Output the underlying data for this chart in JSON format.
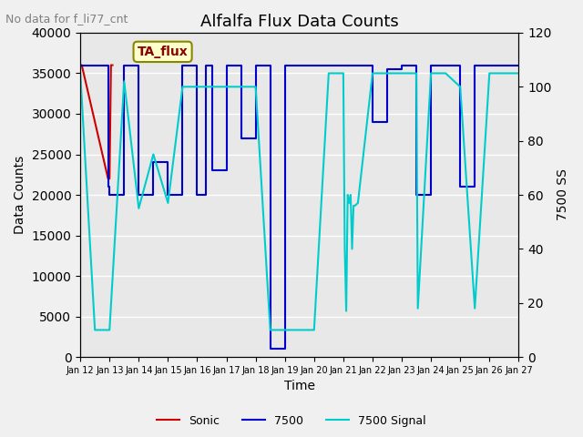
{
  "title": "Alfalfa Flux Data Counts",
  "subtitle": "No data for f_li77_cnt",
  "xlabel": "Time",
  "ylabel_left": "Data Counts",
  "ylabel_right": "7500 SS",
  "legend_box_label": "TA_flux",
  "ylim_left": [
    0,
    40000
  ],
  "ylim_right": [
    0,
    120
  ],
  "background_color": "#e8e8e8",
  "sonic_color": "#cc0000",
  "ls7500_color": "#0000cc",
  "signal_color": "#00cccc",
  "sonic_data": {
    "x": [
      12.0,
      12.05,
      12.95,
      13.0,
      13.05,
      13.1
    ],
    "y": [
      36000,
      36000,
      22000,
      22000,
      36000,
      36000
    ]
  },
  "ls7500_data": {
    "x": [
      12.0,
      12.02,
      12.02,
      12.95,
      12.95,
      13.0,
      13.0,
      13.5,
      13.5,
      14.0,
      14.0,
      14.5,
      14.5,
      15.0,
      15.0,
      15.5,
      15.5,
      16.0,
      16.0,
      16.3,
      16.3,
      16.5,
      16.5,
      17.0,
      17.0,
      17.5,
      17.5,
      18.0,
      18.0,
      18.5,
      18.5,
      19.0,
      19.0,
      19.5,
      19.5,
      20.0,
      20.0,
      20.5,
      20.5,
      21.0,
      21.0,
      21.5,
      21.5,
      22.0,
      22.0,
      22.5,
      22.5,
      23.0,
      23.0,
      23.5,
      23.5,
      24.0,
      24.0,
      24.5,
      24.5,
      25.0,
      25.0,
      25.5,
      25.5,
      26.0,
      26.0,
      26.5,
      26.5,
      27.0
    ],
    "y": [
      36000,
      36000,
      36000,
      36000,
      21000,
      21000,
      20000,
      20000,
      36000,
      36000,
      20000,
      20000,
      24000,
      24000,
      20000,
      20000,
      36000,
      36000,
      20000,
      20000,
      36000,
      36000,
      23000,
      23000,
      36000,
      36000,
      27000,
      27000,
      36000,
      36000,
      1000,
      1000,
      36000,
      36000,
      36000,
      36000,
      36000,
      36000,
      36000,
      36000,
      36000,
      36000,
      36000,
      36000,
      29000,
      29000,
      35500,
      35500,
      36000,
      36000,
      20000,
      20000,
      36000,
      36000,
      36000,
      36000,
      21000,
      21000,
      36000,
      36000,
      36000,
      36000,
      36000,
      36000
    ]
  },
  "signal_data": {
    "x": [
      12.0,
      12.5,
      13.0,
      13.5,
      14.0,
      14.5,
      15.0,
      15.5,
      16.0,
      16.5,
      17.0,
      17.5,
      18.0,
      18.5,
      19.0,
      19.5,
      20.0,
      20.5,
      21.0,
      21.05,
      21.1,
      21.15,
      21.2,
      21.25,
      21.3,
      21.35,
      21.4,
      21.5,
      22.0,
      22.5,
      23.0,
      23.5,
      23.55,
      24.0,
      24.5,
      25.0,
      25.5,
      26.0,
      26.5,
      27.0
    ],
    "y": [
      105,
      10,
      10,
      102,
      55,
      75,
      57,
      100,
      100,
      100,
      100,
      100,
      100,
      10,
      10,
      10,
      10,
      105,
      105,
      40,
      17,
      60,
      57,
      60,
      40,
      56,
      56,
      57,
      105,
      105,
      105,
      105,
      18,
      105,
      105,
      100,
      18,
      105,
      105,
      105
    ]
  },
  "xtick_labels": [
    "Jan 12",
    "Jan 13",
    "Jan 14",
    "Jan 15",
    "Jan 16",
    "Jan 17",
    "Jan 18",
    "Jan 19",
    "Jan 20",
    "Jan 21",
    "Jan 22",
    "Jan 23",
    "Jan 24",
    "Jan 25",
    "Jan 26",
    "Jan 27"
  ],
  "xtick_positions": [
    12,
    13,
    14,
    15,
    16,
    17,
    18,
    19,
    20,
    21,
    22,
    23,
    24,
    25,
    26,
    27
  ]
}
